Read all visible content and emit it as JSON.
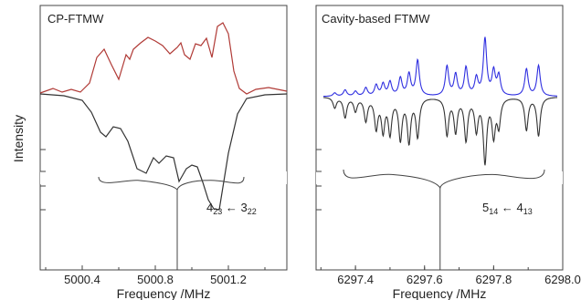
{
  "figure": {
    "y_axis_label": "Intensity"
  },
  "chart_data": [
    {
      "type": "line",
      "title": "CP-FTMW",
      "xlabel": "Frequency /MHz",
      "ylabel": "Intensity",
      "x_ticks": [
        "5000.4",
        "5000.8",
        "5001.2"
      ],
      "x_tick_values": [
        5000.4,
        5000.8,
        5001.2
      ],
      "xlim": [
        5000.17,
        5001.52
      ],
      "grid": false,
      "transition_label": {
        "J": "4",
        "J_sub": "23",
        "arrow": "←",
        "J2": "3",
        "J2_sub": "22"
      },
      "stick_line_frequency": 5000.92,
      "series": [
        {
          "role": "experimental",
          "color": "#b03a36",
          "x": [
            5000.17,
            5000.24,
            5000.29,
            5000.34,
            5000.39,
            5000.44,
            5000.48,
            5000.52,
            5000.56,
            5000.6,
            5000.64,
            5000.66,
            5000.68,
            5000.72,
            5000.76,
            5000.8,
            5000.84,
            5000.88,
            5000.92,
            5000.94,
            5000.96,
            5000.99,
            5001.02,
            5001.05,
            5001.08,
            5001.11,
            5001.14,
            5001.17,
            5001.2,
            5001.23,
            5001.26,
            5001.3,
            5001.35,
            5001.42,
            5001.52
          ],
          "y": [
            0.01,
            0.06,
            0.02,
            0.05,
            0.02,
            0.12,
            0.4,
            0.49,
            0.32,
            0.16,
            0.43,
            0.38,
            0.49,
            0.56,
            0.62,
            0.58,
            0.53,
            0.44,
            0.51,
            0.56,
            0.43,
            0.38,
            0.55,
            0.53,
            0.61,
            0.4,
            0.74,
            0.78,
            0.66,
            0.25,
            0.06,
            0.0,
            0.05,
            0.07,
            0.03
          ]
        },
        {
          "role": "simulated",
          "color": "#333333",
          "x": [
            5000.17,
            5000.3,
            5000.4,
            5000.45,
            5000.5,
            5000.53,
            5000.57,
            5000.61,
            5000.65,
            5000.7,
            5000.75,
            5000.79,
            5000.82,
            5000.86,
            5000.9,
            5000.93,
            5000.97,
            5001.0,
            5001.03,
            5001.06,
            5001.09,
            5001.12,
            5001.15,
            5001.2,
            5001.25,
            5001.3,
            5001.4,
            5001.52
          ],
          "y": [
            0.0,
            -0.02,
            -0.07,
            -0.2,
            -0.42,
            -0.47,
            -0.36,
            -0.38,
            -0.52,
            -0.82,
            -0.87,
            -0.7,
            -0.76,
            -0.68,
            -0.7,
            -0.96,
            -0.82,
            -0.78,
            -0.8,
            -0.97,
            -1.16,
            -1.26,
            -1.27,
            -0.65,
            -0.22,
            -0.05,
            -0.01,
            0.0
          ]
        }
      ]
    },
    {
      "type": "line",
      "title": "Cavity-based FTMW",
      "xlabel": "Frequency /MHz",
      "ylabel": "Intensity",
      "x_ticks": [
        "6297.4",
        "6297.6",
        "6297.8",
        "6298.0"
      ],
      "x_tick_values": [
        6297.4,
        6297.6,
        6297.8,
        6298.0
      ],
      "xlim": [
        6297.286,
        6298.0
      ],
      "grid": false,
      "transition_label": {
        "J": "5",
        "J_sub": "14",
        "arrow": "←",
        "J2": "4",
        "J2_sub": "13"
      },
      "stick_line_frequency": 6297.645,
      "peaks": [
        {
          "x": 6297.34,
          "up": 0.07,
          "down": 0.25
        },
        {
          "x": 6297.37,
          "up": 0.13,
          "down": 0.48
        },
        {
          "x": 6297.4,
          "up": 0.1,
          "down": 0.32
        },
        {
          "x": 6297.43,
          "up": 0.17,
          "down": 0.55
        },
        {
          "x": 6297.46,
          "up": 0.22,
          "down": 0.72
        },
        {
          "x": 6297.48,
          "up": 0.24,
          "down": 0.78
        },
        {
          "x": 6297.5,
          "up": 0.28,
          "down": 0.84
        },
        {
          "x": 6297.53,
          "up": 0.36,
          "down": 0.98
        },
        {
          "x": 6297.555,
          "up": 0.44,
          "down": 1.04
        },
        {
          "x": 6297.58,
          "up": 0.72,
          "down": 0.92
        },
        {
          "x": 6297.665,
          "up": 0.6,
          "down": 0.88
        },
        {
          "x": 6297.69,
          "up": 0.43,
          "down": 0.8
        },
        {
          "x": 6297.72,
          "up": 0.57,
          "down": 1.0
        },
        {
          "x": 6297.75,
          "up": 0.35,
          "down": 0.76
        },
        {
          "x": 6297.775,
          "up": 1.15,
          "down": 1.52
        },
        {
          "x": 6297.8,
          "up": 0.48,
          "down": 0.88
        },
        {
          "x": 6297.815,
          "up": 0.4,
          "down": 0.66
        },
        {
          "x": 6297.895,
          "up": 0.55,
          "down": 0.78
        },
        {
          "x": 6297.93,
          "up": 0.62,
          "down": 0.92
        }
      ],
      "series": [
        {
          "role": "experimental",
          "color": "#2f2fe0"
        },
        {
          "role": "simulated",
          "color": "#333333"
        }
      ]
    }
  ]
}
